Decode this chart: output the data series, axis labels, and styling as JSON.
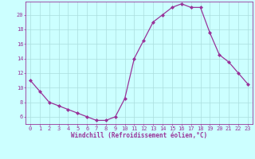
{
  "x": [
    0,
    1,
    2,
    3,
    4,
    5,
    6,
    7,
    8,
    9,
    10,
    11,
    12,
    13,
    14,
    15,
    16,
    17,
    18,
    19,
    20,
    21,
    22,
    23
  ],
  "y": [
    11,
    9.5,
    8,
    7.5,
    7,
    6.5,
    6,
    5.5,
    5.5,
    6,
    8.5,
    14,
    16.5,
    19,
    20,
    21,
    21.5,
    21,
    21,
    17.5,
    14.5,
    13.5,
    12,
    10.5
  ],
  "line_color": "#993399",
  "marker": "D",
  "markersize": 2.0,
  "linewidth": 0.9,
  "bg_color": "#ccffff",
  "grid_color": "#aadddd",
  "xlabel": "Windchill (Refroidissement éolien,°C)",
  "xlabel_color": "#993399",
  "xlabel_fontsize": 5.5,
  "tick_color": "#993399",
  "tick_fontsize": 5,
  "xlim": [
    -0.5,
    23.5
  ],
  "ylim": [
    5.0,
    21.8
  ],
  "yticks": [
    6,
    8,
    10,
    12,
    14,
    16,
    18,
    20
  ],
  "xticks": [
    0,
    1,
    2,
    3,
    4,
    5,
    6,
    7,
    8,
    9,
    10,
    11,
    12,
    13,
    14,
    15,
    16,
    17,
    18,
    19,
    20,
    21,
    22,
    23
  ],
  "spine_color": "#993399"
}
